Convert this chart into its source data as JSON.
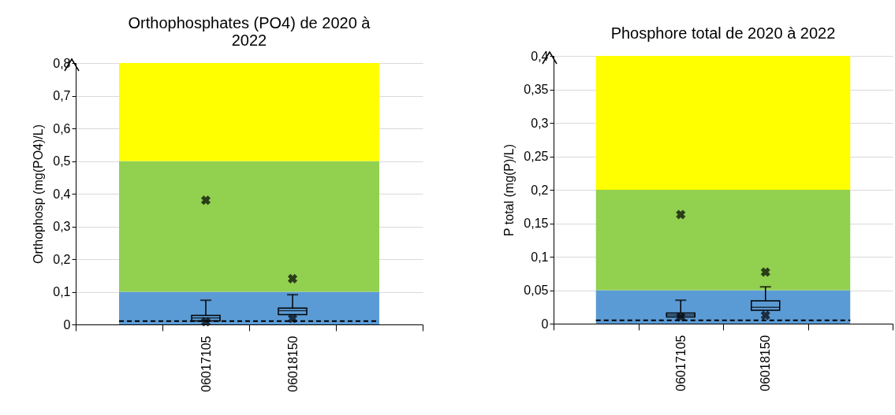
{
  "chart_data": [
    {
      "type": "box",
      "title": "Orthophosphates (PO4) de 2020 à 2022",
      "ylabel": "Orthophosp (mg(PO4)/L)",
      "categories": [
        null,
        "06017105",
        "06018150",
        null
      ],
      "boxes": [
        null,
        {
          "low": 0.011,
          "q1": 0.011,
          "median": 0.02,
          "q3": 0.028,
          "high": 0.074,
          "outliers": [
            0.38,
            0.008
          ]
        },
        {
          "low": 0.03,
          "q1": 0.03,
          "median": 0.042,
          "q3": 0.05,
          "high": 0.091,
          "outliers": [
            0.14,
            0.018
          ]
        },
        null
      ],
      "ylim": [
        0,
        0.8
      ],
      "yticks": [
        0,
        {
          "value": 0.1,
          "label": "0,1"
        },
        {
          "value": 0.2,
          "label": "0,2"
        },
        {
          "value": 0.3,
          "label": "0,3"
        },
        {
          "value": 0.4,
          "label": "0,4"
        },
        {
          "value": 0.5,
          "label": "0,5"
        },
        {
          "value": 0.6,
          "label": "0,6"
        },
        {
          "value": 0.7,
          "label": "0,7"
        },
        {
          "value": 0.8,
          "label": "0,8"
        }
      ],
      "bands": [
        {
          "axis": "y",
          "from": 0,
          "to": 0.1,
          "color": "#5b9bd5"
        },
        {
          "axis": "y",
          "from": 0.1,
          "to": 0.5,
          "color": "#92d050"
        },
        {
          "axis": "y",
          "from": 0.5,
          "to": 0.8,
          "color": "#ffff00"
        }
      ],
      "ref_lines": [
        {
          "axis": "y",
          "value": 0.01,
          "color": "#000000",
          "line_style": "dashed"
        }
      ],
      "grid": "y"
    },
    {
      "type": "box",
      "title": "Phosphore total de 2020 à 2022",
      "ylabel": "P total (mg(P)/L)",
      "categories": [
        null,
        "06017105",
        "06018150",
        null
      ],
      "boxes": [
        null,
        {
          "low": 0.01,
          "q1": 0.01,
          "median": 0.013,
          "q3": 0.016,
          "high": 0.035,
          "outliers": [
            0.163,
            0.01
          ]
        },
        {
          "low": 0.02,
          "q1": 0.02,
          "median": 0.0245,
          "q3": 0.034,
          "high": 0.055,
          "outliers": [
            0.077,
            0.0125
          ]
        },
        null
      ],
      "ylim": [
        0,
        0.4
      ],
      "yticks": [
        0,
        {
          "value": 0.05,
          "label": "0,05"
        },
        {
          "value": 0.1,
          "label": "0,1"
        },
        {
          "value": 0.15,
          "label": "0,15"
        },
        {
          "value": 0.2,
          "label": "0,2"
        },
        {
          "value": 0.25,
          "label": "0,25"
        },
        {
          "value": 0.3,
          "label": "0,3"
        },
        {
          "value": 0.35,
          "label": "0,35"
        },
        {
          "value": 0.4,
          "label": "0,4"
        }
      ],
      "bands": [
        {
          "axis": "y",
          "from": 0,
          "to": 0.05,
          "color": "#5b9bd5"
        },
        {
          "axis": "y",
          "from": 0.05,
          "to": 0.2,
          "color": "#92d050"
        },
        {
          "axis": "y",
          "from": 0.2,
          "to": 0.4,
          "color": "#ffff00"
        }
      ],
      "ref_lines": [
        {
          "axis": "y",
          "value": 0.005,
          "color": "#000000",
          "line_style": "dashed"
        }
      ],
      "grid": "y"
    }
  ]
}
